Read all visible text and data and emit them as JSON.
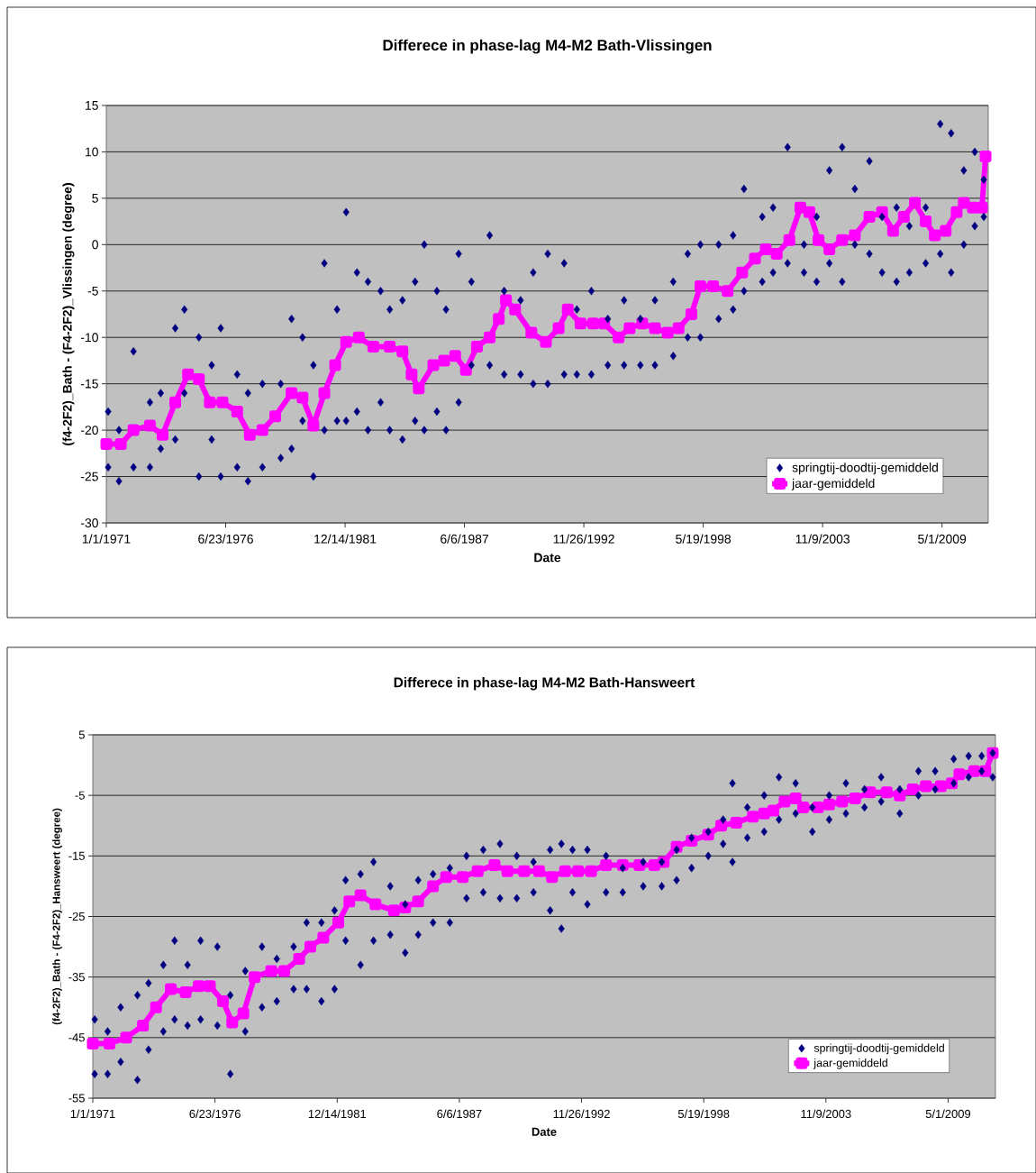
{
  "chart_data": [
    {
      "type": "scatter",
      "title": "Differece in phase-lag M4-M2 Bath-Vlissingen",
      "xlabel": "Date",
      "ylabel": "(f4-2F2)_Bath - (F4-2F2)_Vlissingen (degree)",
      "xlim": [
        "1971-01-01",
        "2011-06-15"
      ],
      "ylim": [
        -30,
        15
      ],
      "xticks": [
        {
          "value": "1971-01-01",
          "label": "1/1/1971"
        },
        {
          "value": "1976-06-23",
          "label": "6/23/1976"
        },
        {
          "value": "1981-12-14",
          "label": "12/14/1981"
        },
        {
          "value": "1987-06-06",
          "label": "6/6/1987"
        },
        {
          "value": "1992-11-26",
          "label": "11/26/1992"
        },
        {
          "value": "1998-05-19",
          "label": "5/19/1998"
        },
        {
          "value": "2003-11-09",
          "label": "11/9/2003"
        },
        {
          "value": "2009-05-01",
          "label": "5/1/2009"
        }
      ],
      "yticks": [
        -30,
        -25,
        -20,
        -15,
        -10,
        -5,
        0,
        5,
        10,
        15
      ],
      "grid": "y",
      "legend": "bottom right",
      "series": [
        {
          "name": "springtij-doodtij-gemiddeld",
          "color": "#000080",
          "marker": "diamond",
          "x": [
            "1971-02",
            "1971-02",
            "1971-08",
            "1971-08",
            "1972-04",
            "1972-04",
            "1973-01",
            "1973-01",
            "1973-07",
            "1973-07",
            "1974-03",
            "1974-03",
            "1974-08",
            "1974-08",
            "1975-04",
            "1975-04",
            "1975-11",
            "1975-11",
            "1976-04",
            "1976-04",
            "1977-01",
            "1977-01",
            "1977-07",
            "1977-07",
            "1978-03",
            "1978-03",
            "1979-01",
            "1979-01",
            "1979-07",
            "1979-07",
            "1980-01",
            "1980-01",
            "1980-07",
            "1980-07",
            "1981-01",
            "1981-01",
            "1981-08",
            "1981-08",
            "1982-01",
            "1982-01",
            "1982-07",
            "1982-07",
            "1983-01",
            "1983-01",
            "1983-08",
            "1983-08",
            "1984-01",
            "1984-01",
            "1984-08",
            "1984-08",
            "1985-03",
            "1985-03",
            "1985-08",
            "1985-08",
            "1986-03",
            "1986-03",
            "1986-08",
            "1986-08",
            "1987-03",
            "1987-03",
            "1987-10",
            "1987-10",
            "1988-08",
            "1988-08",
            "1989-04",
            "1989-04",
            "1990-01",
            "1990-01",
            "1990-08",
            "1990-08",
            "1991-04",
            "1991-04",
            "1992-01",
            "1992-01",
            "1992-08",
            "1992-08",
            "1993-04",
            "1993-04",
            "1994-01",
            "1994-01",
            "1994-10",
            "1994-10",
            "1995-07",
            "1995-07",
            "1996-03",
            "1996-03",
            "1997-01",
            "1997-01",
            "1997-09",
            "1997-09",
            "1998-04",
            "1998-04",
            "1999-02",
            "1999-02",
            "1999-10",
            "1999-10",
            "2000-04",
            "2000-04",
            "2001-02",
            "2001-02",
            "2001-08",
            "2001-08",
            "2002-04",
            "2002-04",
            "2003-01",
            "2003-01",
            "2003-08",
            "2003-08",
            "2004-03",
            "2004-03",
            "2004-10",
            "2004-10",
            "2005-05",
            "2005-05",
            "2006-01",
            "2006-01",
            "2006-08",
            "2006-08",
            "2007-04",
            "2007-04",
            "2007-11",
            "2007-11",
            "2008-08",
            "2008-08",
            "2009-04",
            "2009-04",
            "2009-10",
            "2009-10",
            "2010-05",
            "2010-05",
            "2010-11",
            "2010-11",
            "2011-04",
            "2011-04"
          ],
          "values": [
            -24,
            -18,
            -25.5,
            -20,
            -24,
            -11.5,
            -24,
            -17,
            -22,
            -16,
            -21,
            -9,
            -16,
            -7,
            -25,
            -10,
            -21,
            -13,
            -25,
            -9,
            -24,
            -14,
            -25.5,
            -16,
            -24,
            -15,
            -23,
            -15,
            -22,
            -8,
            -19,
            -10,
            -25,
            -13,
            -20,
            -2,
            -19,
            -7,
            -19,
            3.5,
            -18,
            -3,
            -20,
            -4,
            -17,
            -5,
            -20,
            -7,
            -21,
            -6,
            -19,
            -4,
            -20,
            0,
            -18,
            -5,
            -20,
            -7,
            -17,
            -1,
            -13,
            -4,
            -13,
            1,
            -14,
            -5,
            -14,
            -6,
            -15,
            -3,
            -15,
            -1,
            -14,
            -2,
            -14,
            -7,
            -14,
            -5,
            -13,
            -8,
            -13,
            -6,
            -13,
            -8,
            -13,
            -6,
            -12,
            -4,
            -10,
            -1,
            -10,
            0,
            -8,
            0,
            -7,
            1,
            -5,
            6,
            -4,
            3,
            -3,
            4,
            -2,
            10.5,
            -3,
            0,
            -4,
            3,
            -2,
            8,
            -4,
            10.5,
            0,
            6,
            -1,
            9,
            -3,
            3,
            -4,
            4,
            -3,
            2,
            -2,
            4,
            -1,
            13,
            -3,
            12,
            0,
            8,
            2,
            10,
            3,
            7
          ]
        },
        {
          "name": "jaar-gemiddeld",
          "color": "#ff00ff",
          "type": "line",
          "marker": "square",
          "x": [
            "1971-01",
            "1971-09",
            "1972-04",
            "1973-01",
            "1973-08",
            "1974-03",
            "1974-10",
            "1975-04",
            "1975-10",
            "1976-05",
            "1977-01",
            "1977-08",
            "1978-03",
            "1978-10",
            "1979-07",
            "1980-01",
            "1980-07",
            "1981-01",
            "1981-07",
            "1982-01",
            "1982-08",
            "1983-04",
            "1984-01",
            "1984-08",
            "1985-01",
            "1985-05",
            "1986-01",
            "1986-07",
            "1987-01",
            "1987-07",
            "1988-01",
            "1988-08",
            "1989-01",
            "1989-05",
            "1989-10",
            "1990-07",
            "1991-03",
            "1991-10",
            "1992-03",
            "1992-10",
            "1993-05",
            "1993-11",
            "1994-07",
            "1995-01",
            "1995-08",
            "1996-03",
            "1996-10",
            "1997-04",
            "1997-11",
            "1998-04",
            "1998-11",
            "1999-07",
            "2000-03",
            "2000-10",
            "2001-04",
            "2001-10",
            "2002-05",
            "2002-11",
            "2003-04",
            "2003-09",
            "2004-03",
            "2004-10",
            "2005-05",
            "2006-01",
            "2006-08",
            "2007-02",
            "2007-08",
            "2008-02",
            "2008-08",
            "2009-01",
            "2009-07",
            "2010-01",
            "2010-05",
            "2010-10",
            "2011-03",
            "2011-05"
          ],
          "values": [
            -21.5,
            -21.5,
            -20,
            -19.5,
            -20.5,
            -17,
            -14,
            -14.5,
            -17,
            -17,
            -18,
            -20.5,
            -20,
            -18.5,
            -16,
            -16.5,
            -19.5,
            -16,
            -13,
            -10.5,
            -10,
            -11,
            -11,
            -11.5,
            -14,
            -15.5,
            -13,
            -12.5,
            -12,
            -13.5,
            -11,
            -10,
            -8,
            -6,
            -7,
            -9.5,
            -10.5,
            -9,
            -7,
            -8.5,
            -8.5,
            -8.5,
            -10,
            -9,
            -8.5,
            -9,
            -9.5,
            -9,
            -7.5,
            -4.5,
            -4.5,
            -5,
            -3,
            -1.5,
            -0.5,
            -1,
            0.5,
            4,
            3.5,
            0.5,
            -0.5,
            0.5,
            1,
            3,
            3.5,
            1.5,
            3,
            4.5,
            2.5,
            1,
            1.5,
            3.5,
            4.5,
            4,
            4,
            9.5
          ]
        }
      ]
    },
    {
      "type": "scatter",
      "title": "Differece in phase-lag M4-M2 Bath-Hansweert",
      "xlabel": "Date",
      "ylabel": "(f4-2F2)_Bath - (F4-2F2)_Hansweert (degree)",
      "xlim": [
        "1971-01-01",
        "2011-06-15"
      ],
      "ylim": [
        -55,
        5
      ],
      "xticks": [
        {
          "value": "1971-01-01",
          "label": "1/1/1971"
        },
        {
          "value": "1976-06-23",
          "label": "6/23/1976"
        },
        {
          "value": "1981-12-14",
          "label": "12/14/1981"
        },
        {
          "value": "1987-06-06",
          "label": "6/6/1987"
        },
        {
          "value": "1992-11-26",
          "label": "11/26/1992"
        },
        {
          "value": "1998-05-19",
          "label": "5/19/1998"
        },
        {
          "value": "2003-11-09",
          "label": "11/9/2003"
        },
        {
          "value": "2009-05-01",
          "label": "5/1/2009"
        }
      ],
      "yticks": [
        -55,
        -45,
        -35,
        -25,
        -15,
        -5,
        5
      ],
      "grid": "y",
      "legend": "bottom right",
      "series": [
        {
          "name": "springtij-doodtij-gemiddeld",
          "color": "#000080",
          "marker": "diamond",
          "x": [
            "1971-02",
            "1971-02",
            "1971-09",
            "1971-09",
            "1972-04",
            "1972-04",
            "1973-01",
            "1973-01",
            "1973-07",
            "1973-07",
            "1974-03",
            "1974-03",
            "1974-09",
            "1974-09",
            "1975-04",
            "1975-04",
            "1975-11",
            "1975-11",
            "1976-08",
            "1976-08",
            "1977-03",
            "1977-03",
            "1977-11",
            "1977-11",
            "1978-08",
            "1978-08",
            "1979-04",
            "1979-04",
            "1980-01",
            "1980-01",
            "1980-08",
            "1980-08",
            "1981-04",
            "1981-04",
            "1981-11",
            "1981-11",
            "1982-05",
            "1982-05",
            "1983-01",
            "1983-01",
            "1983-08",
            "1983-08",
            "1984-05",
            "1984-05",
            "1985-01",
            "1985-01",
            "1985-08",
            "1985-08",
            "1986-04",
            "1986-04",
            "1987-01",
            "1987-01",
            "1987-10",
            "1987-10",
            "1988-07",
            "1988-07",
            "1989-04",
            "1989-04",
            "1990-01",
            "1990-01",
            "1990-10",
            "1990-10",
            "1991-07",
            "1991-07",
            "1992-01",
            "1992-01",
            "1992-07",
            "1992-07",
            "1993-03",
            "1993-03",
            "1994-01",
            "1994-01",
            "1994-10",
            "1994-10",
            "1995-09",
            "1995-09",
            "1996-07",
            "1996-07",
            "1997-03",
            "1997-03",
            "1997-11",
            "1997-11",
            "1998-08",
            "1998-08",
            "1999-04",
            "1999-04",
            "1999-09",
            "1999-09",
            "2000-05",
            "2000-05",
            "2001-02",
            "2001-02",
            "2001-10",
            "2001-10",
            "2002-07",
            "2002-07",
            "2003-04",
            "2003-04",
            "2004-01",
            "2004-01",
            "2004-10",
            "2004-10",
            "2005-08",
            "2005-08",
            "2006-05",
            "2006-05",
            "2007-03",
            "2007-03",
            "2008-01",
            "2008-01",
            "2008-10",
            "2008-10",
            "2009-08",
            "2009-08",
            "2010-04",
            "2010-04",
            "2010-11",
            "2010-11",
            "2011-05",
            "2011-05"
          ],
          "values": [
            -51,
            -42,
            -51,
            -44,
            -49,
            -40,
            -52,
            -38,
            -47,
            -36,
            -44,
            -33,
            -42,
            -29,
            -43,
            -33,
            -42,
            -29,
            -43,
            -30,
            -51,
            -38,
            -44,
            -34,
            -40,
            -30,
            -39,
            -32,
            -37,
            -30,
            -37,
            -26,
            -39,
            -26,
            -37,
            -24,
            -29,
            -19,
            -33,
            -18,
            -29,
            -16,
            -28,
            -20,
            -31,
            -23,
            -28,
            -19,
            -26,
            -18,
            -26,
            -17,
            -22,
            -15,
            -21,
            -14,
            -22,
            -13,
            -22,
            -15,
            -21,
            -16,
            -24,
            -14,
            -27,
            -13,
            -21,
            -14,
            -23,
            -14,
            -21,
            -15,
            -21,
            -17,
            -20,
            -16,
            -20,
            -16,
            -19,
            -14,
            -17,
            -12,
            -15,
            -11,
            -13,
            -9,
            -16,
            -3,
            -12,
            -7,
            -11,
            -5,
            -9,
            -2,
            -8,
            -3,
            -11,
            -7,
            -9,
            -5,
            -8,
            -3,
            -7,
            -4,
            -6,
            -2,
            -8,
            -4,
            -5,
            -1,
            -4,
            -1,
            -3,
            1,
            -2,
            1.5,
            -1,
            1.5,
            -2,
            2
          ]
        },
        {
          "name": "jaar-gemiddeld",
          "color": "#ff00ff",
          "type": "line",
          "marker": "square",
          "x": [
            "1971-01",
            "1971-10",
            "1972-07",
            "1973-04",
            "1973-11",
            "1974-07",
            "1975-03",
            "1975-10",
            "1976-04",
            "1976-11",
            "1977-04",
            "1977-10",
            "1978-04",
            "1979-01",
            "1979-08",
            "1980-04",
            "1980-10",
            "1981-05",
            "1982-01",
            "1982-07",
            "1983-01",
            "1983-09",
            "1984-07",
            "1985-01",
            "1985-08",
            "1986-04",
            "1986-11",
            "1987-08",
            "1988-04",
            "1989-01",
            "1989-08",
            "1990-05",
            "1991-01",
            "1991-08",
            "1992-03",
            "1992-10",
            "1993-05",
            "1994-01",
            "1994-10",
            "1995-07",
            "1996-03",
            "1996-08",
            "1997-03",
            "1997-11",
            "1998-08",
            "1999-03",
            "1999-11",
            "2000-08",
            "2001-02",
            "2001-07",
            "2002-01",
            "2002-07",
            "2002-11",
            "2003-07",
            "2004-01",
            "2004-08",
            "2005-03",
            "2005-11",
            "2006-08",
            "2007-03",
            "2007-10",
            "2008-05",
            "2009-01",
            "2009-07",
            "2009-11",
            "2010-07",
            "2011-01",
            "2011-05"
          ],
          "values": [
            -46,
            -46,
            -45,
            -43,
            -40,
            -37,
            -37.5,
            -36.5,
            -36.5,
            -39,
            -42.5,
            -41,
            -35,
            -34,
            -34,
            -32,
            -30,
            -28.5,
            -26,
            -22.5,
            -21.5,
            -23,
            -24,
            -23.5,
            -22.5,
            -20,
            -18.5,
            -18.5,
            -17.5,
            -16.5,
            -17.5,
            -17.5,
            -17.5,
            -18.5,
            -17.5,
            -17.5,
            -17.5,
            -16.5,
            -16.5,
            -16.5,
            -16.5,
            -16,
            -13.5,
            -12.5,
            -11.5,
            -10,
            -9.5,
            -8.5,
            -8,
            -7.5,
            -6,
            -5.5,
            -7,
            -7,
            -6.5,
            -6,
            -5.5,
            -4.5,
            -4.5,
            -5,
            -4,
            -3.5,
            -3.5,
            -3,
            -1.5,
            -1,
            -1,
            2
          ]
        }
      ]
    }
  ]
}
